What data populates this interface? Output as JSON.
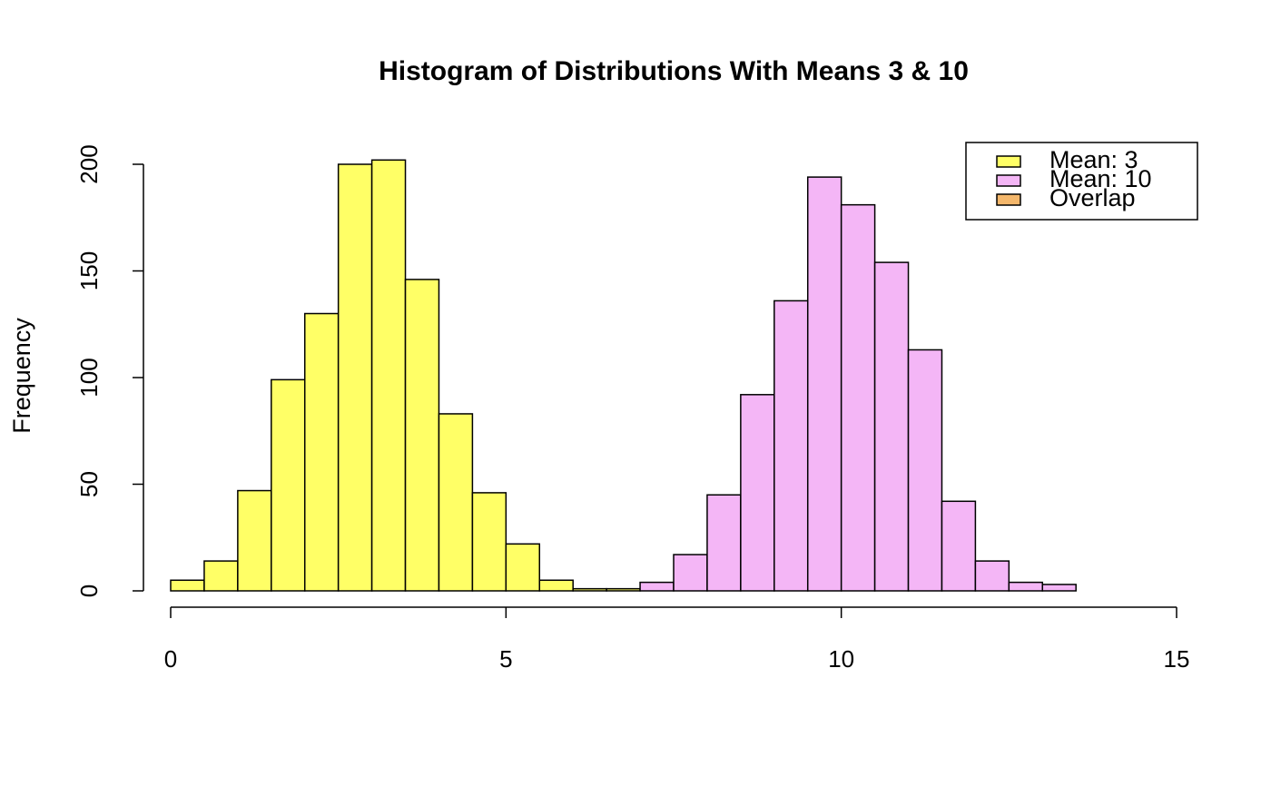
{
  "chart_data": {
    "type": "histogram",
    "title": "Histogram of Distributions With Means 3 & 10",
    "y_label": "Frequency",
    "series": [
      {
        "color": "#ffff66",
        "bins": [
          0,
          0.5,
          1,
          1.5,
          2,
          2.5,
          3,
          3.5,
          4,
          4.5,
          5,
          5.5,
          6,
          6.5,
          7
        ],
        "values": [
          5,
          14,
          47,
          99,
          130,
          200,
          202,
          146,
          83,
          46,
          22,
          5,
          1,
          1
        ]
      },
      {
        "color": "#f4b6f6",
        "bins": [
          7,
          7.5,
          8,
          8.5,
          9,
          9.5,
          10,
          10.5,
          11,
          11.5,
          12,
          12.5,
          13,
          13.5
        ],
        "values": [
          4,
          17,
          45,
          92,
          136,
          194,
          181,
          154,
          113,
          42,
          14,
          4,
          3
        ]
      }
    ],
    "legend": [
      {
        "name": "Mean: 3",
        "color": "#ffff66"
      },
      {
        "name": "Mean: 10",
        "color": "#f4b6f6"
      },
      {
        "name": "Overlap",
        "color": "#f4b76b"
      }
    ],
    "legend_position": "top-right",
    "xlim": [
      0,
      15
    ],
    "xticks": [
      0,
      5,
      10,
      15
    ],
    "ylim": [
      0,
      202
    ],
    "yticks": [
      0,
      50,
      100,
      150,
      200
    ]
  }
}
